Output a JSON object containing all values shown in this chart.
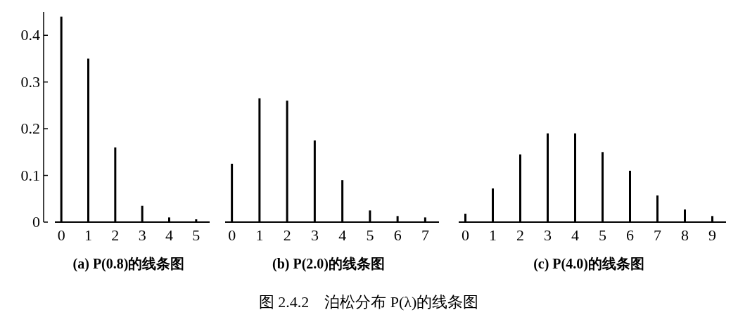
{
  "chart_data": [
    {
      "type": "bar",
      "title": "(a) P(0.8)的线条图",
      "categories": [
        "0",
        "1",
        "2",
        "3",
        "4",
        "5"
      ],
      "color": "#000000",
      "values": [
        0.44,
        0.35,
        0.16,
        0.035,
        0.01,
        0.006
      ],
      "ylim": [
        0,
        0.45
      ],
      "yticks": [
        0,
        0.1,
        0.2,
        0.3,
        0.4
      ],
      "grid": false
    },
    {
      "type": "bar",
      "title": "(b) P(2.0)的线条图",
      "categories": [
        "0",
        "1",
        "2",
        "3",
        "4",
        "5",
        "6",
        "7"
      ],
      "color": "#000000",
      "values": [
        0.125,
        0.265,
        0.26,
        0.175,
        0.09,
        0.025,
        0.013,
        0.01
      ],
      "ylim": [
        0,
        0.4
      ],
      "yticks": [
        0,
        0.1,
        0.2,
        0.3,
        0.4
      ],
      "tick_labels": "x",
      "grid": false
    },
    {
      "type": "bar",
      "title": "(c) P(4.0)的线条图",
      "categories": [
        "0",
        "1",
        "2",
        "3",
        "4",
        "5",
        "6",
        "7",
        "8",
        "9"
      ],
      "color": "#000000",
      "values": [
        0.018,
        0.072,
        0.145,
        0.19,
        0.19,
        0.15,
        0.11,
        0.057,
        0.027,
        0.013
      ],
      "ylim": [
        0,
        0.4
      ],
      "yticks": [
        0,
        0.1,
        0.2,
        0.3,
        0.4
      ],
      "tick_labels": "x",
      "grid": false
    },
    {
      "type": "other",
      "title": "图 2.4.2　泊松分布 P(λ)的线条图"
    }
  ]
}
